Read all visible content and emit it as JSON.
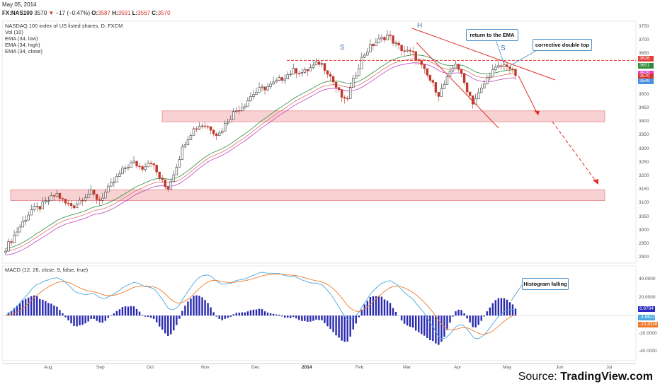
{
  "header": {
    "date": "May 05, 2014",
    "symbol": "FX:NAS100",
    "last": "3570",
    "arrow": "▼",
    "change": "−17 (−0.47%)",
    "o_label": "O:",
    "o": "3587",
    "h_label": "H:",
    "h": "3591",
    "l_label": "L:",
    "l": "3567",
    "c_label": "C:",
    "c": "3570"
  },
  "indicators": [
    "NASDAQ 100 index of US listed shares, D, FXCM",
    "Vol (10)",
    "EMA (34, low)",
    "EMA (34, high)",
    "EMA (34, close)"
  ],
  "macd_label": "MACD (12, 26, close, 9, false, true)",
  "price_labels": [
    {
      "text": "3626",
      "color": "#e0403a"
    },
    {
      "text": "3601",
      "color": "#2e8b3a"
    },
    {
      "text": "3579",
      "color": "#e040c8"
    },
    {
      "text": "3570",
      "color": "#d8332f"
    },
    {
      "text": "3549",
      "color": "#4a90e0"
    }
  ],
  "macd_value_labels": [
    {
      "text": "6.9704",
      "color": "#2a2ac0"
    },
    {
      "text": "-3.8622",
      "color": "#4aa8e0"
    },
    {
      "text": "-10.8326",
      "color": "#f07a2a"
    }
  ],
  "annotations": {
    "return_ema": "return to the EMA",
    "double_top": "corrective double top",
    "histogram": "Histogram falling",
    "s_left": "S",
    "h": "H",
    "s_right": "S"
  },
  "source": {
    "prefix": "Source: ",
    "name": "TradingView.com"
  },
  "colors": {
    "up": "#3a3a3a",
    "down": "#c0392b",
    "ema_low": "#c040c0",
    "ema_high": "#2e8b3a",
    "ema_close": "#e07070",
    "macd": "#4aa8e0",
    "signal": "#f07a2a",
    "hist": "#2a2ab0",
    "zone": "#f5b8bc",
    "resistance": "#e0302a"
  },
  "chart_data": [
    {
      "type": "line",
      "title": "NASDAQ 100 index of US listed shares, D, FXCM",
      "x_ticks": [
        "Aug",
        "Sep",
        "Oct",
        "Nov",
        "Dec",
        "2014",
        "Feb",
        "Mar",
        "Apr",
        "May",
        "Jun",
        "Jul"
      ],
      "y_ticks": [
        2900,
        2950,
        3000,
        3050,
        3100,
        3150,
        3200,
        3250,
        3300,
        3350,
        3400,
        3450,
        3500,
        3550,
        3600,
        3650,
        3700,
        3750
      ],
      "ylim": [
        2880,
        3770
      ],
      "series": [
        {
          "name": "EMA (34, low)"
        },
        {
          "name": "EMA (34, high)"
        },
        {
          "name": "EMA (34, close)"
        }
      ],
      "close_path": [
        2935,
        2980,
        3030,
        3075,
        3085,
        3110,
        3135,
        3100,
        3090,
        3120,
        3140,
        3110,
        3150,
        3190,
        3230,
        3250,
        3230,
        3260,
        3200,
        3150,
        3230,
        3320,
        3370,
        3390,
        3380,
        3350,
        3400,
        3440,
        3460,
        3500,
        3520,
        3530,
        3550,
        3570,
        3590,
        3580,
        3600,
        3620,
        3580,
        3520,
        3470,
        3560,
        3640,
        3680,
        3700,
        3720,
        3680,
        3660,
        3650,
        3600,
        3550,
        3500,
        3560,
        3620,
        3540,
        3470,
        3520,
        3580,
        3600,
        3610,
        3570
      ],
      "zones": [
        [
          3400,
          3440
        ],
        [
          3110,
          3150
        ]
      ],
      "resistance_level": 3626,
      "last_close": 3570
    },
    {
      "type": "bar",
      "title": "MACD (12, 26, close, 9, false, true)",
      "y_ticks": [
        40,
        20,
        0,
        -20,
        -40
      ],
      "ylim": [
        -50,
        55
      ],
      "series": [
        {
          "name": "MACD"
        },
        {
          "name": "Signal"
        },
        {
          "name": "Histogram"
        }
      ],
      "last_values": {
        "histogram": 6.9704,
        "macd": -3.8622,
        "signal": -10.8326
      }
    }
  ]
}
